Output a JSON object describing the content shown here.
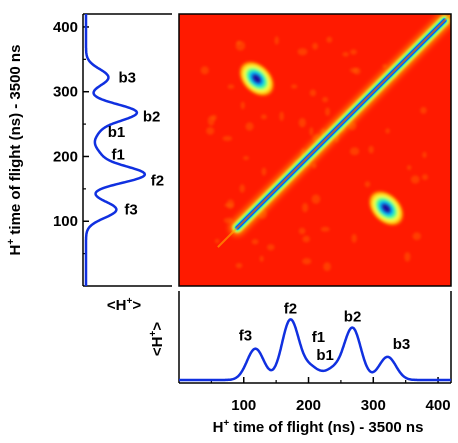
{
  "chart_data": [
    {
      "type": "heatmap",
      "description_scope": "correlation map",
      "x_range": [
        0,
        420
      ],
      "y_range": [
        0,
        420
      ],
      "colormap": [
        "#ff1a00",
        "#ffb000",
        "#ffff40",
        "#40ff90",
        "#00c8ff",
        "#0040ff",
        "#0010c0"
      ],
      "features": [
        {
          "kind": "diagonal-line",
          "from": [
            90,
            90
          ],
          "to": [
            410,
            410
          ],
          "intensity": "max"
        },
        {
          "kind": "island",
          "center": [
            120,
            320
          ],
          "intensity": "high"
        },
        {
          "kind": "island",
          "center": [
            320,
            120
          ],
          "intensity": "high"
        }
      ]
    },
    {
      "type": "line",
      "panel": "bottom",
      "xlabel_pre": "H",
      "xlabel_sup": "+",
      "xlabel_post": " time of flight (ns) -  3500 ns",
      "ylabel_pre": "<H",
      "ylabel_sup": "+",
      "ylabel_post": ">",
      "xlim": [
        0,
        420
      ],
      "xticks": [
        "100",
        "200",
        "300",
        "400"
      ],
      "xtick_values": [
        100,
        200,
        300,
        400
      ],
      "peaks": [
        {
          "label": "f3",
          "x": 118,
          "height": 0.46
        },
        {
          "label": "f2",
          "x": 172,
          "height": 0.88
        },
        {
          "label": "f1",
          "x": 203,
          "height": 0.18
        },
        {
          "label": "b1",
          "x": 238,
          "height": 0.15
        },
        {
          "label": "b2",
          "x": 268,
          "height": 0.76
        },
        {
          "label": "b3",
          "x": 322,
          "height": 0.34
        }
      ]
    },
    {
      "type": "line",
      "panel": "left",
      "ylabel_pre": "H",
      "ylabel_sup": "+",
      "ylabel_post": " time of flight (ns) - 3500 ns",
      "xlabel_pre": "<H",
      "xlabel_sup": "+",
      "xlabel_post": ">",
      "ylim": [
        0,
        420
      ],
      "yticks": [
        "100",
        "200",
        "300",
        "400"
      ],
      "ytick_values": [
        100,
        200,
        300,
        400
      ],
      "peaks": [
        {
          "label": "f3",
          "y": 118,
          "height": 0.46
        },
        {
          "label": "f2",
          "y": 172,
          "height": 0.88
        },
        {
          "label": "f1",
          "y": 203,
          "height": 0.18
        },
        {
          "label": "b1",
          "y": 238,
          "height": 0.15
        },
        {
          "label": "b2",
          "y": 268,
          "height": 0.76
        },
        {
          "label": "b3",
          "y": 322,
          "height": 0.34
        }
      ]
    }
  ],
  "colors": {
    "trace": "#1030e0",
    "axis": "#000000",
    "map_background": "#ff1a00"
  }
}
